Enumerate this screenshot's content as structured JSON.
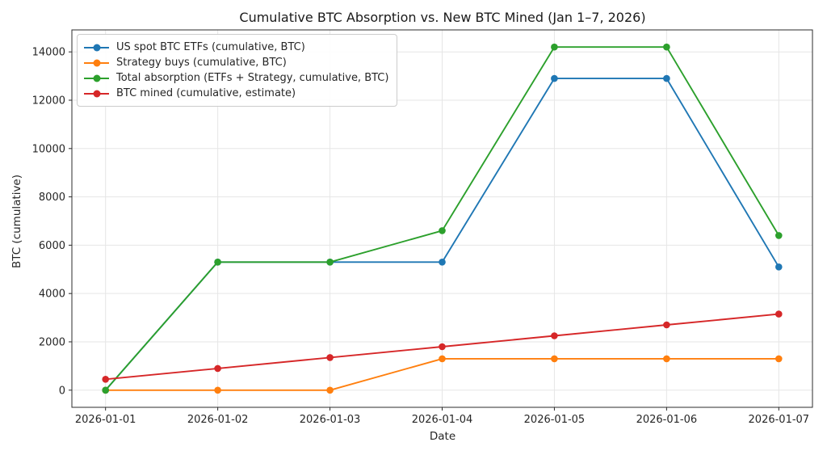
{
  "chart_data": {
    "type": "line",
    "title": "Cumulative BTC Absorption vs. New BTC Mined (Jan 1–7, 2026)",
    "xlabel": "Date",
    "ylabel": "BTC (cumulative)",
    "categories": [
      "2026-01-01",
      "2026-01-02",
      "2026-01-03",
      "2026-01-04",
      "2026-01-05",
      "2026-01-06",
      "2026-01-07"
    ],
    "series": [
      {
        "name": "US spot BTC ETFs (cumulative, BTC)",
        "color": "#1f77b4",
        "values": [
          0,
          5300,
          5300,
          5300,
          12900,
          12900,
          5100
        ]
      },
      {
        "name": "Strategy buys (cumulative, BTC)",
        "color": "#ff7f0e",
        "values": [
          0,
          0,
          0,
          1300,
          1300,
          1300,
          1300
        ]
      },
      {
        "name": "Total absorption (ETFs + Strategy, cumulative, BTC)",
        "color": "#2ca02c",
        "values": [
          0,
          5300,
          5300,
          6600,
          14200,
          14200,
          6400
        ]
      },
      {
        "name": "BTC mined (cumulative, estimate)",
        "color": "#d62728",
        "values": [
          450,
          900,
          1350,
          1800,
          2250,
          2700,
          3150
        ]
      }
    ],
    "yticks": [
      0,
      2000,
      4000,
      6000,
      8000,
      10000,
      12000,
      14000
    ],
    "ylim": [
      -710,
      14910
    ],
    "xlim_pad_days": 0.3,
    "grid": true,
    "legend_position": "upper left",
    "marker": "circle"
  },
  "style": {
    "grid_color": "#e6e6e6",
    "spine_color": "#2b2b2b",
    "tick_color": "#2b2b2b",
    "tick_label_color": "#262626",
    "legend_border_color": "#cccccc",
    "background": "#ffffff"
  }
}
